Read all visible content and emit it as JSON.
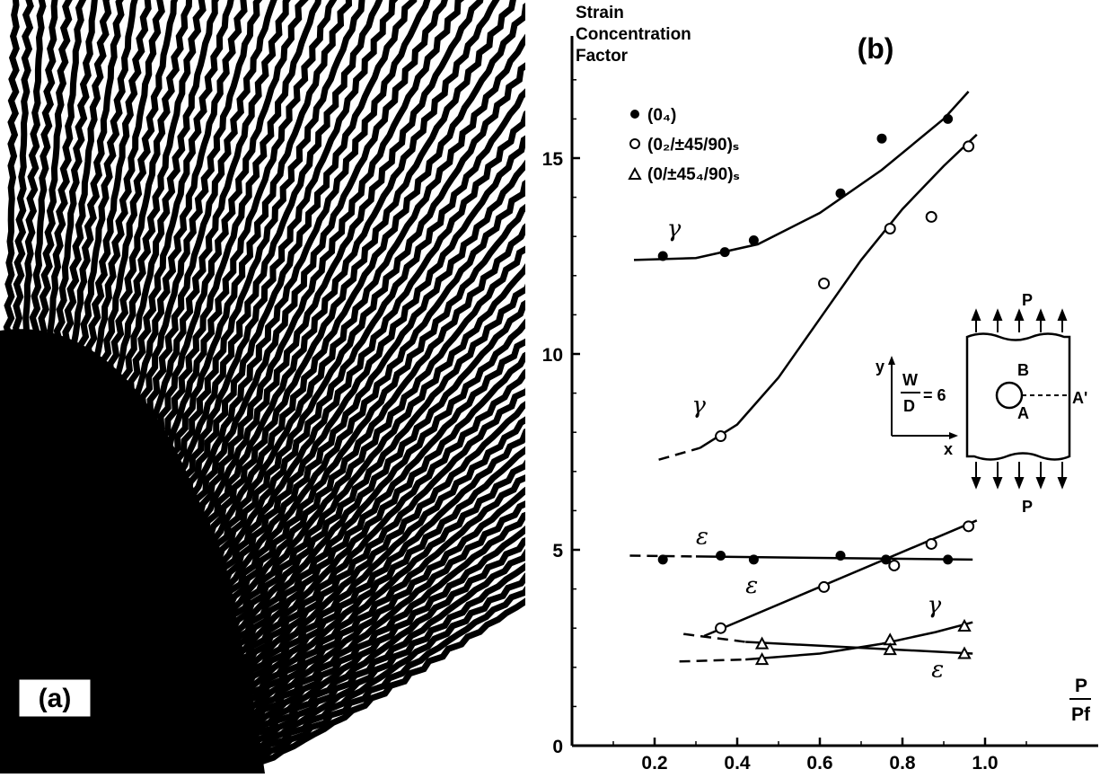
{
  "figure": {
    "panel_a": {
      "label": "(a)"
    },
    "panel_b": {
      "label": "(b)"
    }
  },
  "chart_data": {
    "type": "scatter",
    "title": "(b)",
    "ylabel_lines": [
      "Strain",
      "Concentration",
      "Factor"
    ],
    "xlabel": "P/Pf",
    "xlabel_num": "P",
    "xlabel_den": "Pf",
    "xlim": [
      0,
      1.1
    ],
    "ylim": [
      0,
      18
    ],
    "xticks": [
      0,
      0.2,
      0.4,
      0.6,
      0.8,
      1.0
    ],
    "xtick_labels": [
      "0",
      "0.2",
      "0.4",
      "0.6",
      "0.8",
      "1.0"
    ],
    "yticks": [
      0,
      5,
      10,
      15
    ],
    "ytick_labels": [
      "0",
      "5",
      "10",
      "15"
    ],
    "legend_position": "top-left",
    "series": [
      {
        "name": "(0₄)",
        "marker": "filled-circle",
        "quantity": "γ",
        "points": [
          [
            0.22,
            12.5
          ],
          [
            0.37,
            12.6
          ],
          [
            0.44,
            12.9
          ],
          [
            0.65,
            14.1
          ],
          [
            0.75,
            15.5
          ],
          [
            0.91,
            16.0
          ]
        ],
        "curve": [
          [
            0.15,
            12.4
          ],
          [
            0.3,
            12.45
          ],
          [
            0.45,
            12.8
          ],
          [
            0.6,
            13.6
          ],
          [
            0.75,
            14.7
          ],
          [
            0.9,
            16.0
          ],
          [
            0.96,
            16.7
          ]
        ]
      },
      {
        "name": "(0₂/±45/90)ₛ",
        "marker": "open-circle",
        "quantity": "γ",
        "points": [
          [
            0.36,
            7.9
          ],
          [
            0.61,
            11.8
          ],
          [
            0.77,
            13.2
          ],
          [
            0.87,
            13.5
          ],
          [
            0.96,
            15.3
          ]
        ],
        "dashed_curve": [
          [
            0.21,
            7.3
          ],
          [
            0.31,
            7.6
          ]
        ],
        "curve": [
          [
            0.31,
            7.6
          ],
          [
            0.4,
            8.2
          ],
          [
            0.5,
            9.4
          ],
          [
            0.6,
            10.9
          ],
          [
            0.7,
            12.4
          ],
          [
            0.8,
            13.7
          ],
          [
            0.9,
            14.8
          ],
          [
            0.98,
            15.6
          ]
        ]
      },
      {
        "name": "(0₄)",
        "marker": "filled-circle",
        "quantity": "ε",
        "points": [
          [
            0.22,
            4.75
          ],
          [
            0.36,
            4.85
          ],
          [
            0.44,
            4.75
          ],
          [
            0.65,
            4.85
          ],
          [
            0.76,
            4.75
          ],
          [
            0.91,
            4.75
          ]
        ],
        "dashed_curve": [
          [
            0.14,
            4.85
          ],
          [
            0.3,
            4.83
          ]
        ],
        "curve": [
          [
            0.3,
            4.83
          ],
          [
            0.97,
            4.75
          ]
        ]
      },
      {
        "name": "(0₂/±45/90)ₛ",
        "marker": "open-circle",
        "quantity": "ε",
        "points": [
          [
            0.36,
            3.0
          ],
          [
            0.61,
            4.05
          ],
          [
            0.78,
            4.6
          ],
          [
            0.87,
            5.15
          ],
          [
            0.96,
            5.6
          ]
        ],
        "curve": [
          [
            0.32,
            2.8
          ],
          [
            0.98,
            5.75
          ]
        ]
      },
      {
        "name": "(0/±45₄/90)ₛ",
        "marker": "open-triangle",
        "quantity": "γ",
        "points": [
          [
            0.46,
            2.2
          ],
          [
            0.77,
            2.7
          ],
          [
            0.95,
            3.05
          ]
        ],
        "dashed_curve": [
          [
            0.26,
            2.15
          ],
          [
            0.42,
            2.2
          ]
        ],
        "curve": [
          [
            0.42,
            2.2
          ],
          [
            0.6,
            2.35
          ],
          [
            0.75,
            2.6
          ],
          [
            0.88,
            2.9
          ],
          [
            0.97,
            3.15
          ]
        ]
      },
      {
        "name": "(0/±45₄/90)ₛ",
        "marker": "open-triangle",
        "quantity": "ε",
        "points": [
          [
            0.46,
            2.6
          ],
          [
            0.77,
            2.45
          ],
          [
            0.95,
            2.35
          ]
        ],
        "dashed_curve": [
          [
            0.27,
            2.85
          ],
          [
            0.42,
            2.65
          ]
        ],
        "curve": [
          [
            0.42,
            2.65
          ],
          [
            0.97,
            2.35
          ]
        ]
      }
    ],
    "legend": [
      {
        "marker": "filled-circle",
        "label": "(0₄)"
      },
      {
        "marker": "open-circle",
        "label": "(0₂/±45/90)ₛ"
      },
      {
        "marker": "open-triangle",
        "label": "(0/±45₄/90)ₛ"
      }
    ],
    "annotations": [
      {
        "text": "γ",
        "x": 0.23,
        "y": 13.0
      },
      {
        "text": "γ",
        "x": 0.29,
        "y": 8.5
      },
      {
        "text": "ε",
        "x": 0.3,
        "y": 5.15
      },
      {
        "text": "ε",
        "x": 0.42,
        "y": 3.9
      },
      {
        "text": "γ",
        "x": 0.86,
        "y": 3.4
      },
      {
        "text": "ε",
        "x": 0.87,
        "y": 1.75
      }
    ],
    "inset": {
      "load_label": "P",
      "ratio_num": "W",
      "ratio_den": "D",
      "ratio_value": "= 6",
      "axis_y": "y",
      "axis_x": "x",
      "point_a": "A",
      "point_b": "B",
      "point_a_prime": "A'"
    }
  }
}
